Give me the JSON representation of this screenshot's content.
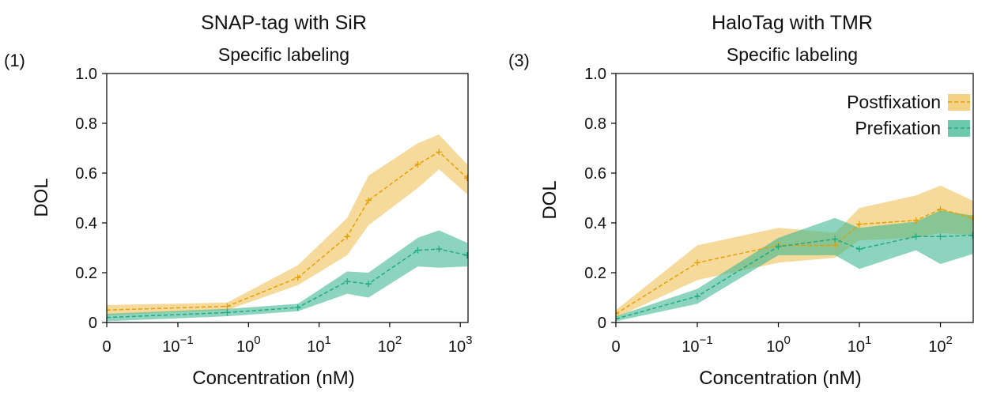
{
  "chart_data": [
    {
      "type": "line",
      "panel_label": "(1)",
      "title": "SNAP-tag with SiR",
      "subtitle": "Specific labeling",
      "xlabel": "Concentration (nM)",
      "ylabel": "DOL",
      "xscale": "symlog",
      "xlim": [
        0,
        1250
      ],
      "ylim": [
        0,
        1.0
      ],
      "x_ticks": [
        {
          "value": 0,
          "base": "0",
          "exp": ""
        },
        {
          "value": 0.1,
          "base": "10",
          "exp": "−1"
        },
        {
          "value": 1,
          "base": "10",
          "exp": "0"
        },
        {
          "value": 10,
          "base": "10",
          "exp": "1"
        },
        {
          "value": 100,
          "base": "10",
          "exp": "2"
        },
        {
          "value": 1000,
          "base": "10",
          "exp": "3"
        }
      ],
      "y_ticks": [
        {
          "value": 0,
          "label": "0"
        },
        {
          "value": 0.2,
          "label": "0.2"
        },
        {
          "value": 0.4,
          "label": "0.4"
        },
        {
          "value": 0.6,
          "label": "0.6"
        },
        {
          "value": 0.8,
          "label": "0.8"
        },
        {
          "value": 1.0,
          "label": "1.0"
        }
      ],
      "legend": null,
      "series": [
        {
          "name": "Postfixation",
          "color": "#E69F00",
          "fill": "#F0C15A",
          "x": [
            0,
            0.5,
            5,
            25,
            50,
            250,
            500,
            1250
          ],
          "y": [
            0.05,
            0.065,
            0.18,
            0.345,
            0.49,
            0.635,
            0.685,
            0.58
          ],
          "lower": [
            0.03,
            0.05,
            0.15,
            0.27,
            0.39,
            0.54,
            0.615,
            0.515
          ],
          "upper": [
            0.07,
            0.08,
            0.23,
            0.42,
            0.59,
            0.72,
            0.755,
            0.635
          ]
        },
        {
          "name": "Prefixation",
          "color": "#1EAB82",
          "fill": "#3FB891",
          "x": [
            0,
            0.5,
            5,
            25,
            50,
            250,
            500,
            1250
          ],
          "y": [
            0.02,
            0.04,
            0.06,
            0.165,
            0.155,
            0.29,
            0.295,
            0.27
          ],
          "lower": [
            0.005,
            0.025,
            0.045,
            0.115,
            0.1,
            0.225,
            0.22,
            0.225
          ],
          "upper": [
            0.035,
            0.055,
            0.075,
            0.205,
            0.2,
            0.34,
            0.37,
            0.32
          ]
        }
      ]
    },
    {
      "type": "line",
      "panel_label": "(3)",
      "title": "HaloTag with TMR",
      "subtitle": "Specific labeling",
      "xlabel": "Concentration (nM)",
      "ylabel": "DOL",
      "xscale": "symlog",
      "xlim": [
        0,
        250
      ],
      "ylim": [
        0,
        1.0
      ],
      "x_ticks": [
        {
          "value": 0,
          "base": "0",
          "exp": ""
        },
        {
          "value": 0.1,
          "base": "10",
          "exp": "−1"
        },
        {
          "value": 1,
          "base": "10",
          "exp": "0"
        },
        {
          "value": 10,
          "base": "10",
          "exp": "1"
        },
        {
          "value": 100,
          "base": "10",
          "exp": "2"
        }
      ],
      "y_ticks": [
        {
          "value": 0,
          "label": "0"
        },
        {
          "value": 0.2,
          "label": "0.2"
        },
        {
          "value": 0.4,
          "label": "0.4"
        },
        {
          "value": 0.6,
          "label": "0.6"
        },
        {
          "value": 0.8,
          "label": "0.8"
        },
        {
          "value": 1.0,
          "label": "1.0"
        }
      ],
      "legend": {
        "location": "top-right",
        "entries": [
          "Postfixation",
          "Prefixation"
        ]
      },
      "series": [
        {
          "name": "Postfixation",
          "color": "#E69F00",
          "fill": "#F0C15A",
          "x": [
            0,
            0.1,
            1,
            5,
            10,
            50,
            100,
            250
          ],
          "y": [
            0.035,
            0.24,
            0.31,
            0.31,
            0.395,
            0.41,
            0.455,
            0.42
          ],
          "lower": [
            0.02,
            0.17,
            0.24,
            0.26,
            0.33,
            0.34,
            0.36,
            0.35
          ],
          "upper": [
            0.05,
            0.31,
            0.38,
            0.36,
            0.46,
            0.51,
            0.55,
            0.49
          ]
        },
        {
          "name": "Prefixation",
          "color": "#1EAB82",
          "fill": "#3FB891",
          "x": [
            0,
            0.1,
            1,
            5,
            10,
            50,
            100,
            250
          ],
          "y": [
            0.015,
            0.105,
            0.305,
            0.335,
            0.295,
            0.345,
            0.345,
            0.35
          ],
          "lower": [
            0.005,
            0.075,
            0.27,
            0.27,
            0.215,
            0.29,
            0.235,
            0.275
          ],
          "upper": [
            0.025,
            0.135,
            0.34,
            0.42,
            0.38,
            0.405,
            0.45,
            0.43
          ]
        }
      ]
    }
  ]
}
